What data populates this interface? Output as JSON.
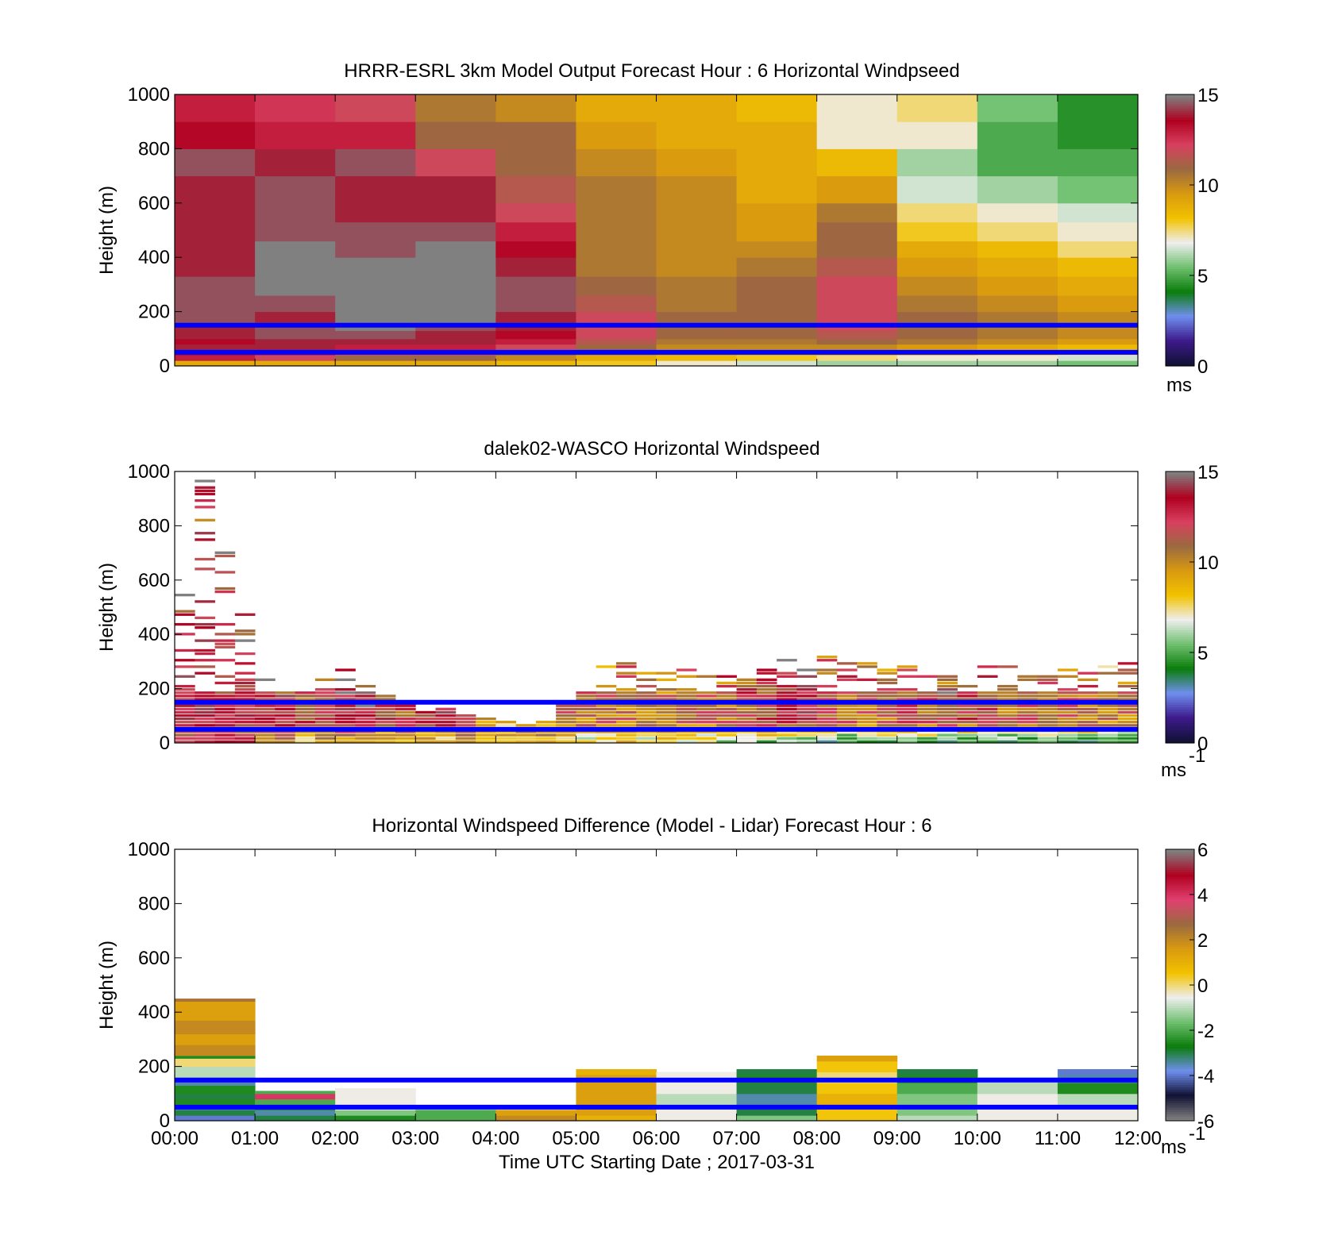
{
  "panels": [
    {
      "id": "model",
      "title": "HRRR-ESRL 3km Model Output   Forecast Hour : 6 Horizontal Windpseed",
      "ylabel": "Height (m)",
      "yticks": [
        "0",
        "200",
        "400",
        "600",
        "800",
        "1000"
      ],
      "cbar_ticks": [
        "0",
        "5",
        "10",
        "15"
      ],
      "cbar_unit": "ms",
      "cbar_unit_sup": ""
    },
    {
      "id": "lidar",
      "title": "dalek02-WASCO  Horizontal Windspeed",
      "ylabel": "Height (m)",
      "yticks": [
        "0",
        "200",
        "400",
        "600",
        "800",
        "1000"
      ],
      "cbar_ticks": [
        "0",
        "5",
        "10",
        "15"
      ],
      "cbar_unit": "ms",
      "cbar_unit_sup": "-1"
    },
    {
      "id": "diff",
      "title": "Horizontal Windspeed Difference (Model - Lidar) Forecast Hour : 6",
      "ylabel": "Height (m)",
      "yticks": [
        "0",
        "200",
        "400",
        "600",
        "800",
        "1000"
      ],
      "cbar_ticks": [
        "-6",
        "-4",
        "-2",
        "0",
        "2",
        "4",
        "6"
      ],
      "cbar_unit": "ms",
      "cbar_unit_sup": "-1"
    }
  ],
  "xticks": [
    "00:00",
    "01:00",
    "02:00",
    "03:00",
    "04:00",
    "05:00",
    "06:00",
    "07:00",
    "08:00",
    "09:00",
    "10:00",
    "11:00",
    "12:00"
  ],
  "xlabel": "Time UTC  Starting Date ; 2017-03-31",
  "colors": {
    "wind_colormap": [
      "#111133",
      "#3d1a8c",
      "#6f8fee",
      "#0a7d0a",
      "#70c070",
      "#eeeeee",
      "#f2c200",
      "#d99a10",
      "#9a6a40",
      "#d84060",
      "#b00020",
      "#808080"
    ],
    "diff_colormap": [
      "#808080",
      "#111133",
      "#6f8fee",
      "#0a7d0a",
      "#70c070",
      "#eeeeee",
      "#f2c200",
      "#d99a10",
      "#9a6a40",
      "#e04070",
      "#b00020",
      "#808080"
    ],
    "reference_line": "#0000ff"
  },
  "chart_data": [
    {
      "type": "heatmap",
      "title": "HRRR-ESRL 3km Model Output   Forecast Hour : 6 Horizontal Windpseed",
      "xlabel": "",
      "ylabel": "Height (m)",
      "xlim_hours": [
        0,
        12
      ],
      "ylim": [
        0,
        1000
      ],
      "clim": [
        0,
        15
      ],
      "colorbar_unit": "ms",
      "reference_lines_height_m": [
        150,
        50
      ],
      "columns_hours": [
        0,
        1,
        2,
        3,
        4,
        5,
        6,
        7,
        8,
        9,
        10,
        11
      ],
      "layer_tops_m": [
        20,
        40,
        60,
        80,
        100,
        130,
        160,
        200,
        260,
        330,
        400,
        460,
        530,
        600,
        700,
        800,
        900,
        1000
      ],
      "values": [
        [
          9,
          13,
          13.5,
          14,
          13.5,
          14,
          14,
          14.5,
          14.5,
          14.5,
          14,
          14,
          14,
          14,
          14,
          14.5,
          13.5,
          13
        ],
        [
          9,
          12,
          13,
          14,
          14,
          14.5,
          14.5,
          14,
          14.5,
          15,
          15,
          15,
          14.5,
          14.5,
          14.5,
          14,
          13,
          12.5
        ],
        [
          9,
          11,
          12,
          13,
          14,
          14.5,
          15,
          15,
          15.5,
          15.5,
          15,
          14.5,
          14.5,
          14,
          14,
          14.5,
          13,
          12
        ],
        [
          9,
          11,
          12,
          13,
          14,
          14,
          14.5,
          15,
          15.5,
          15.5,
          15.5,
          15,
          14.5,
          14,
          14,
          12,
          11,
          10.5
        ],
        [
          8.5,
          10,
          11,
          12,
          13,
          13.5,
          14,
          14,
          14.5,
          14.5,
          14,
          13.5,
          13,
          12,
          11.5,
          11,
          11,
          10
        ],
        [
          8,
          9,
          10,
          11,
          11.5,
          12,
          12,
          12,
          11.5,
          11,
          10.5,
          10.5,
          10.5,
          10.5,
          10.5,
          10,
          9.5,
          9
        ],
        [
          7,
          8.5,
          9.5,
          10,
          10.5,
          11,
          11,
          11,
          10.5,
          10.5,
          10,
          10,
          10,
          10,
          10,
          9.5,
          9,
          9
        ],
        [
          6.5,
          8,
          9,
          10,
          10.5,
          11,
          11,
          11,
          11,
          11,
          10.5,
          10,
          9.5,
          9.5,
          9,
          9,
          9,
          8.5
        ],
        [
          6,
          7.5,
          9,
          10,
          11,
          11.5,
          12,
          12,
          12,
          12,
          11.5,
          11,
          11,
          10.5,
          9.5,
          8.5,
          7,
          7
        ],
        [
          6,
          7,
          8.5,
          9.5,
          10.5,
          11,
          11,
          11,
          10.5,
          10,
          9.5,
          9,
          8,
          7.5,
          6.5,
          6,
          7,
          7.5
        ],
        [
          6,
          7,
          8,
          9,
          10,
          10.5,
          10.5,
          10.5,
          10,
          9.5,
          9,
          8.5,
          7.5,
          7,
          6,
          5,
          5,
          5.5
        ],
        [
          5.5,
          6.5,
          7.5,
          8.5,
          9.5,
          10,
          10,
          10,
          9.5,
          9,
          8.5,
          7.5,
          7,
          6.5,
          5.5,
          5,
          4.5,
          4.5
        ]
      ],
      "missing_cells": [
        {
          "hours": [
            2,
            4
          ],
          "height_m": [
            260,
            360
          ]
        },
        {
          "hours": [
            3,
            4
          ],
          "height_m": [
            180,
            260
          ]
        }
      ]
    },
    {
      "type": "heatmap",
      "title": "dalek02-WASCO  Horizontal Windspeed",
      "xlabel": "",
      "ylabel": "Height (m)",
      "xlim_hours": [
        0,
        12
      ],
      "ylim": [
        0,
        1000
      ],
      "clim": [
        0,
        15
      ],
      "colorbar_unit": "ms-1",
      "reference_lines_height_m": [
        150,
        50
      ],
      "column_width_hours": 0.25,
      "columns_hours": [
        0,
        0.25,
        0.5,
        0.75,
        1,
        1.25,
        1.5,
        1.75,
        2,
        2.25,
        2.5,
        2.75,
        3,
        3.25,
        3.5,
        3.75,
        4,
        4.25,
        4.5,
        4.75,
        5,
        5.25,
        5.5,
        5.75,
        6,
        6.25,
        6.5,
        6.75,
        7,
        7.25,
        7.5,
        7.75,
        8,
        8.25,
        8.5,
        8.75,
        9,
        9.25,
        9.5,
        9.75,
        10,
        10.25,
        10.5,
        10.75,
        11,
        11.25,
        11.5,
        11.75
      ],
      "profile_top_m": [
        600,
        980,
        720,
        520,
        260,
        200,
        190,
        230,
        270,
        220,
        180,
        140,
        120,
        130,
        100,
        90,
        80,
        70,
        80,
        140,
        200,
        280,
        290,
        260,
        270,
        280,
        280,
        260,
        240,
        300,
        310,
        310,
        330,
        300,
        290,
        300,
        280,
        260,
        250,
        260,
        280,
        300,
        280,
        270,
        280,
        270,
        280,
        290
      ],
      "surface_value_ms": [
        12,
        12,
        12,
        12,
        10,
        9,
        8,
        9,
        10,
        9,
        8,
        8,
        8,
        8,
        9,
        9,
        9,
        9,
        9,
        8,
        7,
        7,
        8,
        7,
        7,
        7,
        6,
        6,
        6,
        6,
        5,
        5,
        4,
        4,
        4,
        4,
        4,
        4,
        4,
        4,
        4,
        4,
        4,
        4,
        4,
        4,
        4,
        4
      ],
      "mean_value_ms": [
        13,
        13,
        12.5,
        12.5,
        13,
        13,
        12,
        12,
        13.5,
        13.5,
        12.5,
        12,
        12.5,
        13,
        12,
        11,
        10,
        10,
        10,
        10,
        10.5,
        11,
        10.5,
        10.5,
        10.5,
        11,
        11,
        11,
        11.5,
        12,
        12.5,
        13,
        11.5,
        11,
        11,
        11,
        11.5,
        11.5,
        12,
        12,
        11.5,
        11,
        11,
        11,
        11,
        11,
        10.5,
        10.5
      ]
    },
    {
      "type": "heatmap",
      "title": "Horizontal Windspeed Difference (Model - Lidar) Forecast Hour : 6",
      "xlabel": "Time UTC  Starting Date ; 2017-03-31",
      "ylabel": "Height (m)",
      "xlim_hours": [
        0,
        12
      ],
      "ylim": [
        0,
        1000
      ],
      "clim": [
        -6,
        6
      ],
      "colorbar_unit": "ms-1",
      "reference_lines_height_m": [
        150,
        50
      ],
      "columns_hours": [
        0,
        1,
        2,
        3,
        4,
        5,
        6,
        7,
        8,
        9,
        10,
        11
      ],
      "profile_top_m": [
        450,
        110,
        120,
        40,
        40,
        190,
        180,
        190,
        240,
        190,
        160,
        190
      ],
      "layers": [
        [
          [
            20,
            -4
          ],
          [
            40,
            -3
          ],
          [
            60,
            -3.5
          ],
          [
            80,
            -2.5
          ],
          [
            100,
            -3
          ],
          [
            130,
            -2.5
          ],
          [
            160,
            -3.5
          ],
          [
            200,
            -1
          ],
          [
            230,
            0
          ],
          [
            240,
            -2.5
          ],
          [
            280,
            2
          ],
          [
            320,
            1.5
          ],
          [
            370,
            2
          ],
          [
            440,
            1.5
          ],
          [
            450,
            2.5
          ]
        ],
        [
          [
            20,
            -3
          ],
          [
            40,
            -3.5
          ],
          [
            60,
            -2.5
          ],
          [
            80,
            -2
          ],
          [
            100,
            4
          ],
          [
            110,
            -2
          ]
        ],
        [
          [
            20,
            -2.5
          ],
          [
            40,
            -1.5
          ],
          [
            80,
            -0.5
          ],
          [
            120,
            -0.5
          ]
        ],
        [
          [
            20,
            -2
          ],
          [
            40,
            -2
          ]
        ],
        [
          [
            20,
            2
          ],
          [
            40,
            1.5
          ]
        ],
        [
          [
            20,
            1
          ],
          [
            60,
            1.5
          ],
          [
            100,
            1.5
          ],
          [
            140,
            1.5
          ],
          [
            170,
            1.5
          ],
          [
            190,
            1
          ]
        ],
        [
          [
            20,
            -0.5
          ],
          [
            60,
            -0.5
          ],
          [
            100,
            -1
          ],
          [
            140,
            -0.5
          ],
          [
            180,
            -0.5
          ]
        ],
        [
          [
            20,
            -1.5
          ],
          [
            60,
            -3
          ],
          [
            100,
            -3.5
          ],
          [
            140,
            -3
          ],
          [
            170,
            -2.5
          ],
          [
            190,
            -3
          ]
        ],
        [
          [
            20,
            0.5
          ],
          [
            60,
            0.5
          ],
          [
            100,
            1
          ],
          [
            140,
            0.5
          ],
          [
            180,
            0
          ],
          [
            220,
            0.5
          ],
          [
            240,
            1.5
          ]
        ],
        [
          [
            20,
            -1
          ],
          [
            60,
            -1.5
          ],
          [
            100,
            -1.5
          ],
          [
            140,
            -2
          ],
          [
            170,
            -2.5
          ],
          [
            190,
            -3
          ]
        ],
        [
          [
            20,
            -0.5
          ],
          [
            60,
            -0.5
          ],
          [
            100,
            -0.5
          ],
          [
            140,
            -1
          ],
          [
            160,
            -1
          ]
        ],
        [
          [
            20,
            -0.5
          ],
          [
            60,
            -0.5
          ],
          [
            100,
            -1
          ],
          [
            140,
            -2.5
          ],
          [
            170,
            -3.5
          ],
          [
            190,
            -4
          ]
        ]
      ]
    }
  ]
}
